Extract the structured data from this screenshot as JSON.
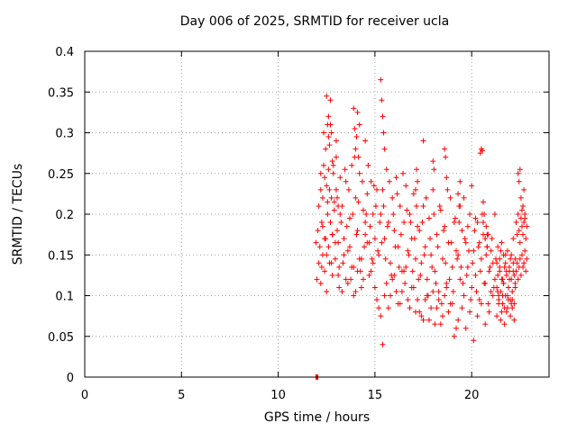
{
  "chart_data": {
    "type": "scatter",
    "title": "Day 006 of 2025, SRMTID for receiver ucla",
    "xlabel": "GPS time / hours",
    "ylabel": "SRMTID / TECUs",
    "xlim": [
      0,
      24
    ],
    "ylim": [
      0,
      0.4
    ],
    "xticks": [
      "0",
      "5",
      "10",
      "15",
      "20"
    ],
    "yticks": [
      "0",
      "0.05",
      "0.1",
      "0.15",
      "0.2",
      "0.25",
      "0.3",
      "0.35",
      "0.4"
    ],
    "grid": true,
    "marker": "+",
    "color": "#ff0000",
    "series": [
      {
        "x": [
          11.95,
          12.0,
          12.05,
          11.95,
          12.0,
          12.05,
          12.1,
          12.1,
          12.15,
          12.2,
          12.2,
          12.25,
          12.3,
          12.3,
          12.35,
          12.4,
          12.4,
          12.45,
          12.5,
          12.5,
          12.55,
          12.6,
          12.6,
          12.65,
          12.7,
          12.7,
          12.75,
          12.8,
          12.8,
          12.85,
          12.9,
          12.95,
          13.0,
          13.0,
          13.05,
          13.1,
          13.1,
          13.15,
          13.2,
          13.25,
          12.2,
          12.3,
          12.4,
          12.5,
          12.6,
          12.8,
          12.9,
          13.0,
          13.1,
          13.2,
          12.25,
          12.35,
          12.45,
          12.55,
          12.65,
          12.75,
          12.85,
          12.95,
          13.05,
          13.15,
          13.3,
          13.4,
          13.5,
          13.6,
          13.7,
          13.8,
          13.9,
          14.0,
          14.1,
          14.2,
          14.3,
          14.4,
          14.5,
          14.6,
          14.7,
          14.8,
          14.9,
          15.0,
          15.1,
          15.2,
          13.35,
          13.45,
          13.55,
          13.65,
          13.75,
          13.85,
          13.95,
          14.05,
          14.15,
          14.25,
          14.35,
          14.45,
          14.55,
          14.65,
          14.75,
          14.85,
          14.95,
          15.05,
          15.15,
          15.25,
          13.3,
          13.5,
          13.7,
          13.9,
          14.1,
          14.3,
          14.5,
          14.7,
          14.9,
          15.1,
          13.4,
          13.6,
          13.8,
          14.0,
          14.2,
          14.4,
          14.6,
          14.8,
          15.0,
          15.2,
          12.6,
          12.65,
          12.7,
          12.75,
          12.8,
          13.9,
          13.95,
          14.0,
          14.05,
          14.1,
          14.15,
          14.2,
          15.3,
          15.35,
          15.4,
          15.45,
          15.5,
          12.5,
          12.55,
          14.5,
          15.3,
          15.4,
          15.5,
          15.6,
          15.7,
          15.8,
          15.9,
          16.0,
          16.1,
          16.2,
          16.3,
          16.4,
          16.5,
          16.6,
          16.7,
          16.8,
          16.9,
          17.0,
          17.1,
          17.2,
          15.35,
          15.45,
          15.55,
          15.65,
          15.75,
          15.85,
          15.95,
          16.05,
          16.15,
          16.25,
          16.35,
          16.45,
          16.55,
          16.65,
          16.75,
          16.85,
          16.95,
          17.05,
          17.15,
          17.25,
          15.3,
          15.5,
          15.7,
          15.9,
          16.1,
          16.3,
          16.5,
          16.7,
          16.9,
          17.1,
          15.4,
          15.6,
          15.8,
          16.0,
          16.2,
          16.4,
          16.6,
          16.8,
          17.0,
          17.2,
          17.3,
          17.4,
          17.5,
          17.6,
          17.7,
          17.8,
          17.9,
          18.0,
          18.1,
          18.2,
          18.3,
          18.4,
          18.5,
          18.6,
          18.7,
          18.8,
          18.9,
          19.0,
          19.1,
          19.2,
          17.35,
          17.45,
          17.55,
          17.65,
          17.75,
          17.85,
          17.95,
          18.05,
          18.15,
          18.25,
          18.35,
          18.45,
          18.55,
          18.65,
          18.75,
          18.85,
          18.95,
          19.05,
          19.15,
          19.25,
          17.3,
          17.5,
          17.7,
          17.9,
          18.1,
          18.3,
          18.5,
          18.7,
          18.9,
          19.1,
          17.4,
          17.6,
          17.8,
          18.0,
          18.2,
          18.4,
          18.6,
          18.8,
          19.0,
          19.2,
          17.1,
          17.15,
          17.2,
          18.6,
          18.65,
          18.7,
          19.3,
          19.35,
          19.4,
          18.0,
          18.05,
          17.5,
          19.3,
          19.4,
          19.5,
          19.6,
          19.7,
          19.8,
          19.9,
          20.0,
          20.1,
          20.2,
          20.3,
          20.4,
          20.5,
          20.6,
          20.7,
          20.8,
          20.9,
          21.0,
          21.1,
          21.2,
          19.35,
          19.45,
          19.55,
          19.65,
          19.75,
          19.85,
          19.95,
          20.05,
          20.15,
          20.25,
          20.35,
          20.45,
          20.55,
          20.65,
          20.75,
          20.85,
          20.95,
          21.05,
          21.15,
          21.25,
          19.3,
          19.5,
          19.7,
          19.9,
          20.1,
          20.3,
          20.5,
          20.7,
          20.9,
          21.1,
          19.4,
          19.6,
          19.8,
          20.0,
          20.2,
          20.4,
          20.6,
          20.8,
          21.0,
          21.2,
          20.45,
          20.5,
          20.55,
          20.6,
          20.65,
          20.7,
          20.75,
          20.8,
          20.85,
          21.3,
          21.35,
          21.4,
          21.45,
          21.5,
          21.55,
          21.6,
          21.65,
          21.7,
          21.75,
          21.8,
          21.85,
          21.9,
          21.95,
          22.0,
          22.05,
          22.1,
          22.15,
          22.2,
          22.25,
          21.3,
          21.4,
          21.5,
          21.6,
          21.7,
          21.8,
          21.9,
          22.0,
          22.1,
          22.2,
          21.35,
          21.45,
          21.55,
          21.65,
          21.75,
          21.85,
          21.95,
          22.05,
          22.15,
          22.25,
          21.3,
          21.4,
          21.5,
          21.6,
          21.7,
          21.8,
          21.9,
          22.0,
          22.1,
          22.2,
          21.35,
          21.45,
          21.55,
          21.65,
          21.75,
          21.85,
          21.95,
          22.05,
          22.15,
          22.25,
          22.3,
          22.35,
          22.4,
          22.45,
          22.5,
          22.55,
          22.6,
          22.65,
          22.7,
          22.75,
          22.8,
          22.85,
          22.3,
          22.35,
          22.4,
          22.45,
          22.5,
          22.55,
          22.6,
          22.65,
          22.7,
          22.75,
          22.8,
          22.85,
          22.4,
          22.45,
          22.5,
          22.55,
          22.6,
          22.65,
          22.7,
          22.75
        ],
        "y": [
          0.0,
          0.0,
          0.0,
          0.165,
          0.12,
          0.18,
          0.21,
          0.14,
          0.16,
          0.25,
          0.115,
          0.19,
          0.22,
          0.15,
          0.3,
          0.17,
          0.13,
          0.28,
          0.235,
          0.105,
          0.2,
          0.255,
          0.16,
          0.14,
          0.19,
          0.31,
          0.22,
          0.175,
          0.125,
          0.26,
          0.205,
          0.145,
          0.23,
          0.29,
          0.18,
          0.165,
          0.21,
          0.135,
          0.245,
          0.19,
          0.23,
          0.185,
          0.245,
          0.15,
          0.295,
          0.175,
          0.215,
          0.27,
          0.125,
          0.2,
          0.135,
          0.26,
          0.17,
          0.215,
          0.23,
          0.14,
          0.25,
          0.165,
          0.22,
          0.11,
          0.21,
          0.17,
          0.24,
          0.155,
          0.195,
          0.26,
          0.135,
          0.22,
          0.18,
          0.25,
          0.145,
          0.205,
          0.19,
          0.225,
          0.165,
          0.24,
          0.2,
          0.17,
          0.23,
          0.15,
          0.14,
          0.255,
          0.185,
          0.23,
          0.12,
          0.2,
          0.27,
          0.175,
          0.215,
          0.13,
          0.24,
          0.16,
          0.2,
          0.26,
          0.185,
          0.145,
          0.235,
          0.21,
          0.155,
          0.19,
          0.105,
          0.12,
          0.16,
          0.1,
          0.13,
          0.11,
          0.175,
          0.125,
          0.14,
          0.095,
          0.15,
          0.115,
          0.135,
          0.105,
          0.145,
          0.12,
          0.165,
          0.13,
          0.11,
          0.085,
          0.32,
          0.285,
          0.34,
          0.3,
          0.265,
          0.33,
          0.305,
          0.28,
          0.295,
          0.325,
          0.27,
          0.31,
          0.365,
          0.34,
          0.32,
          0.3,
          0.28,
          0.345,
          0.31,
          0.29,
          0.2,
          0.23,
          0.17,
          0.255,
          0.19,
          0.14,
          0.22,
          0.18,
          0.245,
          0.16,
          0.21,
          0.13,
          0.19,
          0.235,
          0.155,
          0.2,
          0.17,
          0.225,
          0.145,
          0.185,
          0.165,
          0.21,
          0.145,
          0.185,
          0.24,
          0.125,
          0.2,
          0.16,
          0.225,
          0.135,
          0.175,
          0.25,
          0.115,
          0.205,
          0.15,
          0.19,
          0.13,
          0.17,
          0.21,
          0.12,
          0.075,
          0.1,
          0.085,
          0.12,
          0.105,
          0.09,
          0.13,
          0.095,
          0.11,
          0.08,
          0.04,
          0.115,
          0.1,
          0.125,
          0.09,
          0.105,
          0.135,
          0.085,
          0.11,
          0.095,
          0.18,
          0.14,
          0.21,
          0.16,
          0.12,
          0.195,
          0.15,
          0.23,
          0.13,
          0.175,
          0.105,
          0.205,
          0.145,
          0.185,
          0.115,
          0.165,
          0.22,
          0.135,
          0.19,
          0.155,
          0.125,
          0.19,
          0.15,
          0.22,
          0.1,
          0.17,
          0.135,
          0.2,
          0.115,
          0.16,
          0.21,
          0.09,
          0.18,
          0.14,
          0.23,
          0.12,
          0.165,
          0.105,
          0.195,
          0.145,
          0.08,
          0.07,
          0.1,
          0.085,
          0.065,
          0.095,
          0.075,
          0.11,
          0.09,
          0.05,
          0.075,
          0.095,
          0.07,
          0.105,
          0.085,
          0.065,
          0.1,
          0.08,
          0.09,
          0.06,
          0.23,
          0.255,
          0.24,
          0.28,
          0.27,
          0.245,
          0.225,
          0.21,
          0.24,
          0.265,
          0.255,
          0.29,
          0.15,
          0.12,
          0.18,
          0.1,
          0.165,
          0.135,
          0.2,
          0.11,
          0.155,
          0.125,
          0.19,
          0.095,
          0.145,
          0.175,
          0.115,
          0.16,
          0.13,
          0.105,
          0.14,
          0.12,
          0.19,
          0.135,
          0.115,
          0.17,
          0.125,
          0.155,
          0.095,
          0.14,
          0.18,
          0.105,
          0.16,
          0.13,
          0.2,
          0.115,
          0.15,
          0.09,
          0.135,
          0.17,
          0.11,
          0.145,
          0.07,
          0.085,
          0.06,
          0.08,
          0.045,
          0.075,
          0.09,
          0.065,
          0.08,
          0.1,
          0.21,
          0.22,
          0.185,
          0.235,
          0.195,
          0.165,
          0.215,
          0.175,
          0.155,
          0.2,
          0.275,
          0.28,
          0.278,
          0.19,
          0.2,
          0.17,
          0.185,
          0.16,
          0.175,
          0.11,
          0.125,
          0.095,
          0.13,
          0.105,
          0.12,
          0.09,
          0.115,
          0.135,
          0.1,
          0.125,
          0.085,
          0.11,
          0.13,
          0.095,
          0.12,
          0.105,
          0.14,
          0.09,
          0.115,
          0.14,
          0.1,
          0.155,
          0.12,
          0.085,
          0.13,
          0.11,
          0.145,
          0.095,
          0.125,
          0.105,
          0.135,
          0.08,
          0.115,
          0.15,
          0.1,
          0.12,
          0.09,
          0.13,
          0.11,
          0.075,
          0.09,
          0.07,
          0.1,
          0.065,
          0.08,
          0.095,
          0.075,
          0.085,
          0.07,
          0.16,
          0.145,
          0.165,
          0.15,
          0.14,
          0.155,
          0.135,
          0.15,
          0.17,
          0.145,
          0.19,
          0.175,
          0.2,
          0.18,
          0.165,
          0.195,
          0.185,
          0.175,
          0.19,
          0.2,
          0.17,
          0.185,
          0.13,
          0.14,
          0.12,
          0.135,
          0.145,
          0.125,
          0.15,
          0.135,
          0.14,
          0.155,
          0.13,
          0.145,
          0.25,
          0.24,
          0.255,
          0.22,
          0.205,
          0.21,
          0.23,
          0.195
        ]
      }
    ]
  }
}
